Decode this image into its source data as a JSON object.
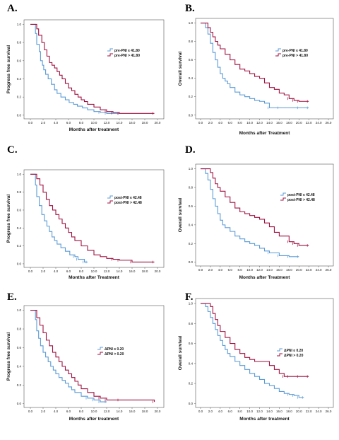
{
  "colors": {
    "blue": "#5b9bd5",
    "red": "#a01040",
    "axis": "#555555"
  },
  "chart_data": [
    {
      "panel": "A.",
      "type": "line",
      "xlabel": "Months after treatment",
      "ylabel": "Progress free survival",
      "xticks": [
        "0.0",
        "2.0",
        "4.0",
        "6.0",
        "8.0",
        "10.0",
        "12.0",
        "14.0",
        "16.0",
        "18.0",
        "20.0"
      ],
      "yticks": [
        "0.0",
        "0.2",
        "0.4",
        "0.6",
        "0.8",
        "1.0"
      ],
      "xlim": [
        -1,
        21
      ],
      "ylim": [
        -0.04,
        1.05
      ],
      "series": [
        {
          "name": "pre-PNI ≤ 41.80",
          "color": "blue",
          "x": [
            0,
            0.8,
            1.0,
            1.4,
            1.6,
            1.9,
            2.1,
            2.4,
            2.8,
            3.3,
            3.8,
            4.2,
            4.8,
            5.5,
            6.1,
            6.8,
            7.4,
            8.2,
            9.0,
            10.0,
            11.0,
            12.0,
            13.0,
            14.0
          ],
          "y": [
            1.0,
            0.9,
            0.78,
            0.7,
            0.6,
            0.55,
            0.5,
            0.45,
            0.4,
            0.34,
            0.28,
            0.24,
            0.2,
            0.17,
            0.14,
            0.12,
            0.1,
            0.08,
            0.06,
            0.04,
            0.03,
            0.02,
            0.02,
            0.02
          ]
        },
        {
          "name": "pre-PNI > 41.80",
          "color": "red",
          "x": [
            0,
            1.0,
            1.3,
            1.8,
            2.2,
            2.6,
            3.0,
            3.4,
            3.8,
            4.2,
            4.6,
            5.0,
            5.5,
            6.0,
            6.5,
            7.0,
            7.5,
            8.0,
            8.5,
            9.0,
            10.0,
            11.0,
            12.0,
            13.0,
            14.0,
            19.5
          ],
          "y": [
            1.0,
            0.95,
            0.88,
            0.8,
            0.72,
            0.65,
            0.58,
            0.55,
            0.52,
            0.48,
            0.44,
            0.4,
            0.35,
            0.3,
            0.27,
            0.23,
            0.2,
            0.17,
            0.15,
            0.12,
            0.09,
            0.06,
            0.04,
            0.03,
            0.02,
            0.02
          ]
        }
      ],
      "legend": "right"
    },
    {
      "panel": "B.",
      "type": "line",
      "xlabel": "Months after Treatment",
      "ylabel": "Overall survival",
      "xticks": [
        "0.0",
        "2.0",
        "4.0",
        "6.0",
        "8.0",
        "10.0",
        "12.0",
        "14.0",
        "16.0",
        "18.0",
        "20.0",
        "22.0",
        "24.0",
        "26.0"
      ],
      "yticks": [
        "0.0",
        "0.2",
        "0.4",
        "0.6",
        "0.8",
        "1.0"
      ],
      "xlim": [
        -1,
        27
      ],
      "ylim": [
        -0.04,
        1.05
      ],
      "series": [
        {
          "name": "pre-PNI ≤ 41.80",
          "color": "blue",
          "x": [
            0,
            1.0,
            1.5,
            2.0,
            2.5,
            3.0,
            3.5,
            4.0,
            4.5,
            5.0,
            5.5,
            6.0,
            7.0,
            8.0,
            9.0,
            10.0,
            11.0,
            12.0,
            13.0,
            14.0,
            16.0,
            20.0,
            22.0
          ],
          "y": [
            1.0,
            0.95,
            0.88,
            0.78,
            0.68,
            0.6,
            0.52,
            0.45,
            0.4,
            0.37,
            0.34,
            0.3,
            0.25,
            0.22,
            0.2,
            0.18,
            0.16,
            0.15,
            0.13,
            0.08,
            0.08,
            0.08,
            0.08
          ]
        },
        {
          "name": "pre-PNI > 41.80",
          "color": "red",
          "x": [
            0,
            1.5,
            2.0,
            2.5,
            3.0,
            3.5,
            4.0,
            5.0,
            6.0,
            7.0,
            8.0,
            9.0,
            10.0,
            11.0,
            12.0,
            13.0,
            14.0,
            15.0,
            16.0,
            17.0,
            18.0,
            19.0,
            20.0,
            22.0
          ],
          "y": [
            1.0,
            0.95,
            0.9,
            0.85,
            0.8,
            0.76,
            0.72,
            0.66,
            0.6,
            0.55,
            0.5,
            0.48,
            0.45,
            0.42,
            0.4,
            0.35,
            0.3,
            0.28,
            0.24,
            0.22,
            0.18,
            0.16,
            0.15,
            0.15
          ]
        }
      ],
      "legend": "right"
    },
    {
      "panel": "C.",
      "type": "line",
      "xlabel": "Months after Treatment",
      "ylabel": "Progress free survival",
      "xticks": [
        "0.0",
        "2.0",
        "4.0",
        "6.0",
        "8.0",
        "10.0",
        "12.0",
        "14.0",
        "16.0",
        "18.0",
        "20.0"
      ],
      "yticks": [
        "0.0",
        "0.2",
        "0.4",
        "0.6",
        "0.8",
        "1.0"
      ],
      "xlim": [
        -1,
        21
      ],
      "ylim": [
        -0.04,
        1.05
      ],
      "series": [
        {
          "name": "post-PNI ≤ 42.48",
          "color": "blue",
          "x": [
            0,
            0.8,
            1.0,
            1.4,
            1.8,
            2.2,
            2.6,
            3.0,
            3.4,
            3.8,
            4.2,
            4.8,
            5.5,
            6.2,
            7.0,
            7.5,
            8.5,
            9.0
          ],
          "y": [
            1.0,
            0.88,
            0.75,
            0.65,
            0.55,
            0.48,
            0.42,
            0.36,
            0.3,
            0.26,
            0.22,
            0.18,
            0.14,
            0.1,
            0.08,
            0.05,
            0.02,
            0.02
          ]
        },
        {
          "name": "post-PNI > 42.48",
          "color": "red",
          "x": [
            0,
            1.0,
            1.5,
            2.0,
            2.5,
            3.0,
            3.5,
            4.0,
            4.5,
            5.0,
            5.5,
            6.0,
            6.5,
            7.0,
            8.0,
            9.0,
            10.0,
            11.0,
            12.0,
            13.0,
            14.0,
            16.0,
            19.5
          ],
          "y": [
            1.0,
            0.95,
            0.88,
            0.8,
            0.72,
            0.65,
            0.6,
            0.55,
            0.5,
            0.45,
            0.4,
            0.35,
            0.3,
            0.26,
            0.2,
            0.15,
            0.1,
            0.08,
            0.06,
            0.05,
            0.04,
            0.02,
            0.02
          ]
        }
      ],
      "legend": "right"
    },
    {
      "panel": "D.",
      "type": "line",
      "xlabel": "Months after Treatment",
      "ylabel": "Overall survival",
      "xticks": [
        "0.0",
        "2.0",
        "4.0",
        "6.0",
        "8.0",
        "10.0",
        "12.0",
        "14.0",
        "16.0",
        "18.0",
        "20.0",
        "22.0",
        "24.0",
        "26.0"
      ],
      "yticks": [
        "0.0",
        "0.2",
        "0.4",
        "0.6",
        "0.8",
        "1.0"
      ],
      "xlim": [
        -1,
        27
      ],
      "ylim": [
        -0.04,
        1.05
      ],
      "series": [
        {
          "name": "post-PNI ≤ 42.48",
          "color": "blue",
          "x": [
            0,
            1.0,
            1.5,
            2.0,
            2.5,
            3.0,
            3.5,
            4.0,
            4.5,
            5.0,
            6.0,
            7.0,
            8.0,
            9.0,
            10.0,
            11.0,
            12.0,
            13.0,
            14.0,
            16.0,
            18.0,
            20.0
          ],
          "y": [
            1.0,
            0.95,
            0.88,
            0.78,
            0.68,
            0.6,
            0.52,
            0.45,
            0.4,
            0.37,
            0.33,
            0.28,
            0.25,
            0.22,
            0.2,
            0.18,
            0.15,
            0.12,
            0.1,
            0.07,
            0.06,
            0.06
          ]
        },
        {
          "name": "post-PNI > 42.48",
          "color": "red",
          "x": [
            0,
            2.0,
            2.5,
            3.0,
            3.5,
            4.0,
            5.0,
            6.0,
            7.0,
            8.0,
            9.0,
            10.0,
            11.0,
            12.0,
            13.0,
            14.0,
            15.0,
            16.0,
            17.0,
            18.0,
            19.0,
            20.0,
            22.0
          ],
          "y": [
            1.0,
            0.96,
            0.9,
            0.84,
            0.8,
            0.76,
            0.7,
            0.64,
            0.58,
            0.54,
            0.52,
            0.5,
            0.48,
            0.46,
            0.42,
            0.38,
            0.32,
            0.28,
            0.28,
            0.22,
            0.2,
            0.18,
            0.18
          ]
        }
      ],
      "legend": "right"
    },
    {
      "panel": "E.",
      "type": "line",
      "xlabel": "Months after treatment",
      "ylabel": "Progress free survival",
      "xticks": [
        "0.0",
        "2.0",
        "4.0",
        "6.0",
        "8.0",
        "10.0",
        "12.0",
        "14.0",
        "16.0",
        "18.0",
        "20.0"
      ],
      "yticks": [
        "0.0",
        "0.2",
        "0.4",
        "0.6",
        "0.8",
        "1.0"
      ],
      "xlim": [
        -1,
        21
      ],
      "ylim": [
        -0.04,
        1.05
      ],
      "series": [
        {
          "name": "ΔPNI ≤ 0.20",
          "color": "blue",
          "x": [
            0,
            0.8,
            1.0,
            1.3,
            1.6,
            2.0,
            2.4,
            2.8,
            3.2,
            3.6,
            4.0,
            4.5,
            5.0,
            5.5,
            6.0,
            6.5,
            7.0,
            8.0,
            9.0,
            10.0,
            11.0,
            12.0
          ],
          "y": [
            1.0,
            0.9,
            0.78,
            0.7,
            0.62,
            0.55,
            0.5,
            0.45,
            0.4,
            0.36,
            0.32,
            0.28,
            0.25,
            0.22,
            0.18,
            0.15,
            0.12,
            0.08,
            0.06,
            0.04,
            0.02,
            0.02
          ]
        },
        {
          "name": "ΔPNI > 0.20",
          "color": "red",
          "x": [
            0,
            1.0,
            1.5,
            2.0,
            2.5,
            3.0,
            3.5,
            4.0,
            4.5,
            5.0,
            5.5,
            6.0,
            6.5,
            7.0,
            7.5,
            8.0,
            9.0,
            10.0,
            11.0,
            12.0,
            14.0,
            19.5
          ],
          "y": [
            1.0,
            0.92,
            0.84,
            0.76,
            0.68,
            0.62,
            0.55,
            0.5,
            0.45,
            0.4,
            0.36,
            0.32,
            0.28,
            0.24,
            0.2,
            0.16,
            0.12,
            0.08,
            0.06,
            0.04,
            0.04,
            0.02
          ]
        }
      ],
      "legend": "right"
    },
    {
      "panel": "F.",
      "type": "line",
      "xlabel": "Months after treatment",
      "ylabel": "Overall survival",
      "xticks": [
        "0.0",
        "2.0",
        "4.0",
        "6.0",
        "8.0",
        "10.0",
        "12.0",
        "14.0",
        "16.0",
        "18.0",
        "20.0",
        "22.0",
        "24.0",
        "26.0"
      ],
      "yticks": [
        "0.0",
        "0.2",
        "0.4",
        "0.6",
        "0.8",
        "1.0"
      ],
      "xlim": [
        -1,
        27
      ],
      "ylim": [
        -0.04,
        1.05
      ],
      "series": [
        {
          "name": "ΔPNI ≤ 0.20",
          "color": "blue",
          "x": [
            0,
            1.0,
            1.5,
            2.0,
            2.5,
            3.0,
            3.5,
            4.0,
            4.5,
            5.0,
            5.5,
            6.0,
            7.0,
            8.0,
            9.0,
            10.0,
            11.0,
            12.0,
            13.0,
            14.0,
            15.0,
            16.0,
            17.0,
            18.0,
            19.0,
            20.0,
            21.0
          ],
          "y": [
            1.0,
            0.97,
            0.92,
            0.86,
            0.8,
            0.74,
            0.68,
            0.63,
            0.58,
            0.54,
            0.5,
            0.47,
            0.42,
            0.38,
            0.34,
            0.3,
            0.27,
            0.24,
            0.2,
            0.18,
            0.15,
            0.12,
            0.1,
            0.09,
            0.08,
            0.06,
            0.06
          ]
        },
        {
          "name": "ΔPNI > 0.20",
          "color": "red",
          "x": [
            0,
            2.0,
            2.5,
            3.0,
            3.5,
            4.0,
            5.0,
            6.0,
            7.0,
            8.0,
            9.0,
            10.0,
            11.0,
            12.0,
            13.0,
            14.0,
            15.0,
            16.0,
            17.0,
            18.0,
            20.0,
            22.0
          ],
          "y": [
            1.0,
            0.97,
            0.9,
            0.84,
            0.78,
            0.72,
            0.66,
            0.6,
            0.54,
            0.5,
            0.46,
            0.44,
            0.42,
            0.42,
            0.42,
            0.38,
            0.34,
            0.3,
            0.27,
            0.27,
            0.27,
            0.27
          ]
        }
      ],
      "legend": "right"
    }
  ]
}
